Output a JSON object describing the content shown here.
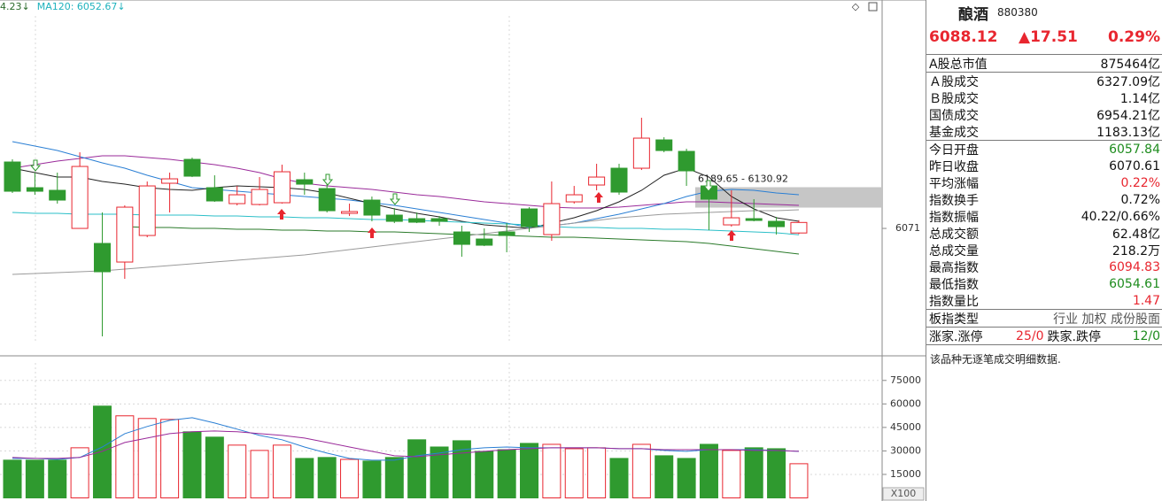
{
  "chart_data": [
    {
      "type": "candlestick",
      "legend_labels": [
        {
          "text": "4.23↓",
          "color": "#2a6a2a"
        },
        {
          "text": "MA120: 6052.67↓",
          "color": "#1fb2bd"
        }
      ],
      "up_color": "#e8262f",
      "down_color": "#2f9a2f",
      "open": [
        6262.3,
        6188.3,
        6180.7,
        6071.0,
        6027.7,
        5974.1,
        6050.6,
        6201.1,
        6269.9,
        6188.3,
        6142.4,
        6139.9,
        6145.0,
        6211.3,
        6185.8,
        6114.4,
        6152.6,
        6109.3,
        6099.1,
        6099.1,
        6060.8,
        6040.4,
        6060.8,
        6127.1,
        6053.2,
        6147.5,
        6196.0,
        6244.4,
        6244.4,
        6326.0,
        6292.9,
        6193.4,
        6081.2,
        6099.1,
        6091.4,
        6057.84
      ],
      "high": [
        6269.9,
        6231.7,
        6231.7,
        6290.3,
        6116.9,
        6137.3,
        6206.2,
        6231.7,
        6275.0,
        6224.0,
        6193.4,
        6218.9,
        6254.6,
        6231.7,
        6198.5,
        6142.4,
        6162.8,
        6129.7,
        6116.9,
        6106.7,
        6078.7,
        6071.0,
        6086.3,
        6132.2,
        6206.2,
        6193.4,
        6257.2,
        6257.2,
        6389.8,
        6333.7,
        6300.5,
        6206.2,
        6180.7,
        6155.2,
        6104.2,
        6094.83
      ],
      "low": [
        6173.0,
        6167.9,
        6142.4,
        6071.0,
        5759.9,
        5925.7,
        6045.5,
        6116.9,
        6218.9,
        6147.5,
        6137.3,
        6137.3,
        6142.4,
        6167.9,
        6116.9,
        6106.7,
        6091.4,
        6086.3,
        6086.3,
        6078.7,
        5989.4,
        6020.0,
        6002.2,
        6060.8,
        6035.3,
        6142.4,
        6180.7,
        6167.9,
        6239.3,
        6290.3,
        6193.4,
        6065.9,
        6076.1,
        6091.4,
        6053.2,
        6054.61
      ],
      "close": [
        6178.1,
        6178.1,
        6152.6,
        6249.5,
        5946.1,
        6132.2,
        6193.4,
        6213.8,
        6221.5,
        6150.1,
        6167.9,
        6183.2,
        6234.2,
        6198.5,
        6122.0,
        6119.5,
        6109.3,
        6091.4,
        6088.9,
        6091.4,
        6025.1,
        6022.6,
        6050.6,
        6076.1,
        6142.4,
        6167.9,
        6218.9,
        6175.6,
        6331.1,
        6295.4,
        6236.8,
        6155.2,
        6101.6,
        6094.0,
        6076.1,
        6088.12
      ],
      "lines": [
        {
          "color": "#9a2a9a",
          "values": [
            6244.4,
            6254.6,
            6264.8,
            6272.5,
            6280.1,
            6280.1,
            6275.0,
            6269.9,
            6262.3,
            6254.6,
            6244.4,
            6231.7,
            6213.8,
            6201.1,
            6193.4,
            6188.3,
            6183.2,
            6175.6,
            6167.9,
            6162.8,
            6155.2,
            6147.5,
            6142.4,
            6137.3,
            6132.2,
            6129.7,
            6129.7,
            6132.2,
            6137.3,
            6142.4,
            6147.5,
            6147.5,
            6145.0,
            6142.4,
            6139.9,
            6137.3
          ]
        },
        {
          "color": "#2a7fd4",
          "values": [
            6320.9,
            6308.2,
            6295.4,
            6277.6,
            6259.7,
            6244.4,
            6224.0,
            6206.2,
            6188.3,
            6183.2,
            6178.1,
            6173.0,
            6167.9,
            6162.8,
            6157.7,
            6152.6,
            6145.0,
            6137.3,
            6127.1,
            6116.9,
            6106.7,
            6096.5,
            6086.3,
            6073.6,
            6078.7,
            6086.3,
            6099.1,
            6111.8,
            6127.1,
            6142.4,
            6162.8,
            6178.1,
            6183.2,
            6180.7,
            6173.0,
            6167.9
          ]
        },
        {
          "color": "#222222",
          "values": [
            6244.4,
            6231.7,
            6218.9,
            6218.9,
            6206.2,
            6198.5,
            6188.3,
            6183.2,
            6180.7,
            6188.3,
            6193.4,
            6190.9,
            6188.3,
            6183.2,
            6173.0,
            6157.7,
            6142.4,
            6127.1,
            6114.4,
            6104.2,
            6091.4,
            6081.2,
            6076.1,
            6071.0,
            6086.3,
            6101.6,
            6122.0,
            6147.5,
            6180.7,
            6224.0,
            6244.4,
            6218.9,
            6162.8,
            6127.1,
            6101.6,
            6091.4
          ]
        },
        {
          "color": "#2bbfc8",
          "values": [
            6116.9,
            6114.4,
            6114.4,
            6111.8,
            6111.8,
            6111.8,
            6109.3,
            6109.3,
            6109.3,
            6106.7,
            6106.7,
            6104.2,
            6104.2,
            6101.6,
            6101.6,
            6099.1,
            6096.5,
            6096.5,
            6094.0,
            6091.4,
            6088.9,
            6086.3,
            6083.8,
            6081.2,
            6076.1,
            6073.6,
            6073.6,
            6071.0,
            6071.0,
            6068.5,
            6068.5,
            6065.9,
            6063.4,
            6060.8,
            6058.3,
            6052.67
          ]
        },
        {
          "color": "#2a7a2a",
          "values": [
            null,
            null,
            null,
            null,
            null,
            6076.1,
            6073.6,
            6073.6,
            6071.0,
            6071.0,
            6068.5,
            6068.5,
            6065.9,
            6065.9,
            6063.4,
            6063.4,
            6060.8,
            6060.8,
            6058.3,
            6055.7,
            6053.2,
            6053.2,
            6050.6,
            6048.1,
            6045.5,
            6045.5,
            6043.0,
            6040.4,
            6037.9,
            6035.3,
            6032.8,
            6027.7,
            6020.0,
            6012.4,
            6004.7,
            5997.1
          ]
        },
        {
          "color": "#9a9a9a",
          "values": [
            5938.4,
            5941.0,
            5943.5,
            5946.1,
            5948.6,
            5953.7,
            5958.8,
            5963.9,
            5969.0,
            5974.1,
            5979.2,
            5984.3,
            5989.4,
            5994.5,
            6002.2,
            6009.8,
            6017.5,
            6025.1,
            6032.8,
            6040.4,
            6048.1,
            6055.7,
            6063.4,
            6071.0,
            6078.7,
            6086.3,
            6094.0,
            6101.6,
            6106.7,
            6111.8,
            6114.4,
            6116.9,
            6119.5,
            6122.0,
            6122.0,
            6124.6
          ]
        }
      ],
      "band": {
        "label": "6189.65 - 6130.92",
        "from": 6130.92,
        "to": 6189.65
      },
      "ylim": [
        5709,
        6729
      ],
      "yticks": [
        6071
      ]
    },
    {
      "type": "bar",
      "up_color": "#e8262f",
      "down_color": "#2f9a2f",
      "values": [
        24100,
        24100,
        24100,
        32000,
        58600,
        52400,
        50700,
        50100,
        42200,
        38800,
        33700,
        30300,
        33700,
        25200,
        25800,
        24600,
        23500,
        25800,
        37100,
        32500,
        36500,
        29700,
        30800,
        34800,
        34200,
        31400,
        32000,
        25200,
        34200,
        26900,
        25200,
        34200,
        30300,
        32000,
        31400,
        21820
      ],
      "lines": [
        {
          "color": "#2a7fd4",
          "values": [
            25200,
            25200,
            24600,
            25800,
            32500,
            41000,
            45600,
            49500,
            51200,
            47800,
            43900,
            39900,
            37100,
            32500,
            28600,
            25200,
            24100,
            24100,
            26900,
            28600,
            30800,
            32000,
            32500,
            32000,
            32000,
            32000,
            32000,
            31400,
            31400,
            30300,
            29700,
            30800,
            30800,
            30800,
            30300,
            29700
          ]
        },
        {
          "color": "#9a2a9a",
          "values": [
            25800,
            25200,
            25200,
            25800,
            29700,
            35400,
            38200,
            41000,
            42200,
            42700,
            42200,
            41000,
            39900,
            38200,
            35400,
            32500,
            29700,
            26900,
            26300,
            27500,
            28600,
            29700,
            30800,
            31400,
            32000,
            32000,
            32000,
            31400,
            31400,
            30800,
            30800,
            30800,
            30800,
            30300,
            30300,
            29700
          ]
        }
      ],
      "unit_label": "X100",
      "ylim": [
        0,
        89000
      ],
      "yticks": [
        15000,
        30000,
        45000,
        60000,
        75000
      ]
    }
  ],
  "quote": {
    "name": "酿酒",
    "code": "880380",
    "price": "6088.12",
    "change": "▲17.51",
    "change_pct": "0.29%",
    "quote_color": "#e8262f",
    "groups": [
      [
        [
          {
            "text": "A股总市值"
          },
          {
            "text": "875464亿"
          }
        ]
      ],
      [
        [
          {
            "text": "Ａ股成交"
          },
          {
            "text": "6327.09亿"
          }
        ],
        [
          {
            "text": "Ｂ股成交"
          },
          {
            "text": "1.14亿"
          }
        ],
        [
          {
            "text": "国债成交"
          },
          {
            "text": "6954.21亿"
          }
        ],
        [
          {
            "text": "基金成交"
          },
          {
            "text": "1183.13亿"
          }
        ]
      ],
      [
        [
          {
            "text": "今日开盘"
          },
          {
            "text": "6057.84",
            "color": "#1e8c1e"
          }
        ],
        [
          {
            "text": "昨日收盘"
          },
          {
            "text": "6070.61"
          }
        ],
        [
          {
            "text": "平均涨幅"
          },
          {
            "text": "0.22%",
            "color": "#e8262f"
          }
        ],
        [
          {
            "text": "指数换手"
          },
          {
            "text": "0.72%"
          }
        ],
        [
          {
            "text": "指数振幅"
          },
          {
            "text": "40.22/0.66%"
          }
        ],
        [
          {
            "text": "总成交额"
          },
          {
            "text": "62.48亿"
          }
        ],
        [
          {
            "text": "总成交量"
          },
          {
            "text": "218.2万"
          }
        ],
        [
          {
            "text": "最高指数"
          },
          {
            "text": "6094.83",
            "color": "#e8262f"
          }
        ],
        [
          {
            "text": "最低指数"
          },
          {
            "text": "6054.61",
            "color": "#1e8c1e"
          }
        ],
        [
          {
            "text": "指数量比"
          },
          {
            "text": "1.47",
            "color": "#e8262f"
          }
        ]
      ],
      [
        [
          {
            "text": "板指类型"
          },
          {
            "text": "行业 加权 成份股面",
            "color": "#555555"
          }
        ]
      ],
      [
        [
          {
            "text": "涨家.涨停"
          },
          {
            "text": "25/0",
            "color": "#e8262f"
          },
          {
            "text": "跌家.跌停"
          },
          {
            "text": "12/0",
            "color": "#1e8c1e"
          }
        ]
      ]
    ],
    "note": "该品种无逐笔成交明细数据."
  }
}
